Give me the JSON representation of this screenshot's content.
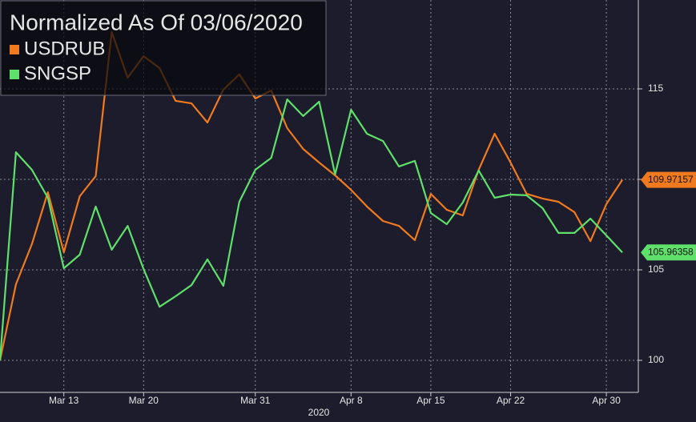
{
  "chart_data": {
    "type": "line",
    "title": "Normalized As Of 03/06/2020",
    "xlabel": "2020",
    "categories": [
      null,
      null,
      null,
      null,
      "Mar 13",
      null,
      null,
      null,
      null,
      "Mar 20",
      null,
      null,
      null,
      null,
      null,
      null,
      "Mar 31",
      null,
      null,
      null,
      null,
      null,
      "Apr 8",
      null,
      null,
      null,
      null,
      "Apr 15",
      null,
      null,
      null,
      null,
      "Apr 22",
      null,
      null,
      null,
      null,
      null,
      "Apr 30",
      null
    ],
    "series": [
      {
        "name": "USDRUB",
        "color": "#f07a1e",
        "values": [
          100,
          104.2,
          106.42,
          109.29,
          105.97,
          109.07,
          110.18,
          118.14,
          115.62,
          116.81,
          116.15,
          114.34,
          114.2,
          113.14,
          114.96,
          115.8,
          114.47,
          114.91,
          112.83,
          111.68,
          110.93,
          110.22,
          109.42,
          108.5,
          107.7,
          107.43,
          106.64,
          109.2,
          108.32,
          108.01,
          110.53,
          112.52,
          110.93,
          109.2,
          108.94,
          108.76,
          108.19,
          106.59,
          108.63,
          109.97157
        ]
      },
      {
        "name": "SNGSP",
        "color": "#5ee06a",
        "values": [
          100,
          111.5,
          110.53,
          108.98,
          105.09,
          105.84,
          108.5,
          106.11,
          107.43,
          105.04,
          102.96,
          103.54,
          104.16,
          105.58,
          104.12,
          108.76,
          110.53,
          111.19,
          114.42,
          113.5,
          114.29,
          110.27,
          113.85,
          112.52,
          112.12,
          110.71,
          111.02,
          108.14,
          107.52,
          108.72,
          110.49,
          108.98,
          109.16,
          109.12,
          108.41,
          107.04,
          107.04,
          107.83,
          106.9,
          105.96358
        ]
      }
    ],
    "ylim": [
      98.23,
      119.91
    ],
    "yticks": [
      100,
      105,
      110,
      115
    ],
    "grid": true,
    "legend": "top-left"
  }
}
